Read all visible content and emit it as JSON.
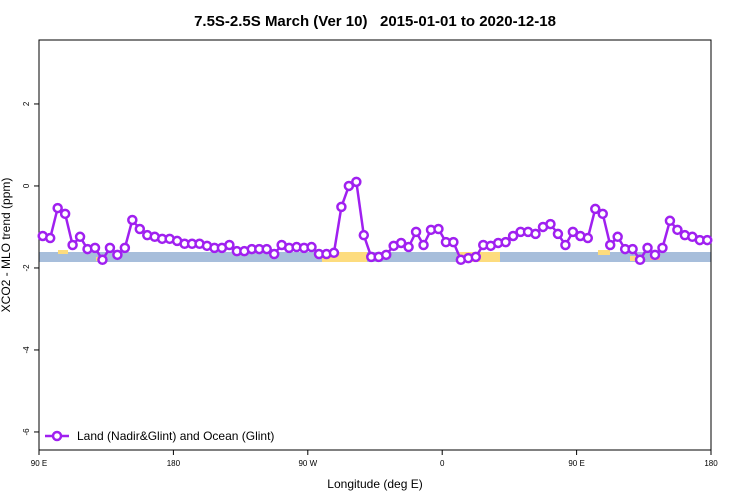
{
  "chart_data": {
    "type": "line",
    "title": "7.5S-2.5S March (Ver 10)   2015-01-01 to 2020-12-18",
    "x_label": "Longitude (deg E)",
    "y_label": "XCO2 - MLO trend (ppm)",
    "xlim": [
      90,
      540
    ],
    "ylim": [
      -6.44,
      3.56
    ],
    "xticks": [
      {
        "value": 90,
        "label": "90 E"
      },
      180,
      {
        "value": 270,
        "label": "90 W"
      },
      {
        "value": 360,
        "label": "0"
      },
      {
        "value": 450,
        "label": "90 E"
      },
      {
        "value": 540,
        "label": "180"
      }
    ],
    "yticks": [
      -6,
      -4,
      -2,
      0,
      2
    ],
    "legend_position": "bottom-left",
    "x": [
      92.5,
      97.5,
      102.5,
      107.5,
      112.5,
      117.5,
      122.5,
      127.5,
      132.5,
      137.5,
      142.5,
      147.5,
      152.5,
      157.5,
      162.5,
      167.5,
      172.5,
      177.5,
      182.5,
      187.5,
      192.5,
      197.5,
      202.5,
      207.5,
      212.5,
      217.5,
      222.5,
      227.5,
      232.5,
      237.5,
      242.5,
      247.5,
      252.5,
      257.5,
      262.5,
      267.5,
      272.5,
      277.5,
      282.5,
      287.5,
      292.5,
      297.5,
      302.5,
      307.5,
      312.5,
      317.5,
      322.5,
      327.5,
      332.5,
      337.5,
      342.5,
      347.5,
      352.5,
      357.5,
      362.5,
      367.5,
      372.5,
      377.5,
      382.5,
      387.5,
      392.5,
      397.5,
      402.5,
      407.5,
      412.5,
      417.5,
      422.5,
      427.5,
      432.5,
      437.5,
      442.5,
      447.5,
      452.5,
      457.5,
      462.5,
      467.5,
      472.5,
      477.5,
      482.5,
      487.5,
      492.5,
      497.5,
      502.5,
      507.5,
      512.5,
      517.5,
      522.5,
      527.5,
      532.5,
      537.5
    ],
    "series": [
      {
        "name": "Land (Nadir&Glint) and Ocean (Glint)",
        "color": "#a020f0",
        "values": [
          -1.22,
          -1.27,
          -0.54,
          -0.68,
          -1.44,
          -1.24,
          -1.54,
          -1.51,
          -1.8,
          -1.51,
          -1.68,
          -1.51,
          -0.83,
          -1.05,
          -1.2,
          -1.24,
          -1.29,
          -1.29,
          -1.34,
          -1.41,
          -1.41,
          -1.41,
          -1.46,
          -1.51,
          -1.51,
          -1.44,
          -1.59,
          -1.59,
          -1.54,
          -1.54,
          -1.54,
          -1.66,
          -1.44,
          -1.51,
          -1.49,
          -1.51,
          -1.49,
          -1.66,
          -1.66,
          -1.63,
          -0.51,
          0.0,
          0.1,
          -1.2,
          -1.73,
          -1.73,
          -1.68,
          -1.46,
          -1.39,
          -1.49,
          -1.12,
          -1.44,
          -1.07,
          -1.05,
          -1.37,
          -1.37,
          -1.8,
          -1.76,
          -1.73,
          -1.44,
          -1.46,
          -1.39,
          -1.37,
          -1.22,
          -1.12,
          -1.12,
          -1.17,
          -1.0,
          -0.93,
          -1.17,
          -1.44,
          -1.12,
          -1.22,
          -1.27,
          -0.56,
          -0.68,
          -1.44,
          -1.24,
          -1.54,
          -1.54,
          -1.8,
          -1.51,
          -1.68,
          -1.51,
          -0.85,
          -1.07,
          -1.2,
          -1.24,
          -1.32,
          -1.32
        ]
      }
    ]
  }
}
